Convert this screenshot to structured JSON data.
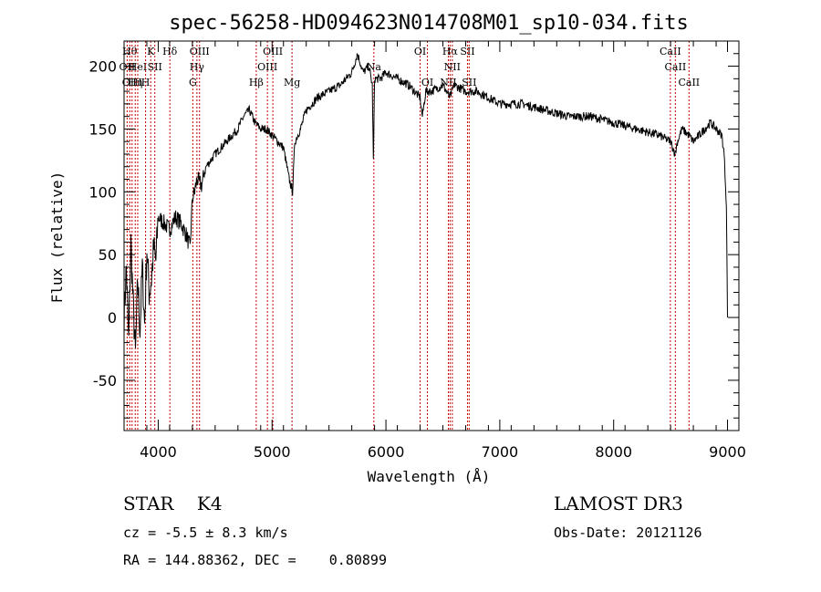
{
  "chart_data": {
    "type": "line",
    "title": "spec-56258-HD094623N014708M01_sp10-034.fits",
    "xlabel": "Wavelength (Å)",
    "ylabel": "Flux (relative)",
    "xlim": [
      3700,
      9100
    ],
    "ylim": [
      -90,
      220
    ],
    "xticks": [
      4000,
      5000,
      6000,
      7000,
      8000,
      9000
    ],
    "yticks": [
      -50,
      0,
      50,
      100,
      150,
      200
    ],
    "grid": false,
    "series": [
      {
        "x": [
          3700,
          3720,
          3740,
          3760,
          3780,
          3800,
          3820,
          3840,
          3860,
          3880,
          3900,
          3920,
          3940,
          3960,
          3980,
          4000,
          4050,
          4100,
          4150,
          4200,
          4250,
          4280,
          4300,
          4320,
          4340,
          4380,
          4420,
          4500,
          4600,
          4700,
          4750,
          4800,
          4850,
          4900,
          4950,
          5000,
          5050,
          5100,
          5150,
          5180,
          5200,
          5250,
          5300,
          5400,
          5500,
          5600,
          5700,
          5750,
          5800,
          5850,
          5880,
          5890,
          5900,
          5950,
          6000,
          6100,
          6200,
          6300,
          6320,
          6350,
          6400,
          6500,
          6560,
          6600,
          6700,
          6800,
          6900,
          7000,
          7200,
          7400,
          7600,
          7800,
          8000,
          8200,
          8400,
          8500,
          8540,
          8560,
          8600,
          8662,
          8700,
          8800,
          8850,
          8900,
          8950,
          8970,
          8990,
          9000
        ],
        "y": [
          0,
          40,
          -20,
          60,
          10,
          -30,
          30,
          -10,
          40,
          -5,
          55,
          20,
          30,
          55,
          45,
          80,
          75,
          70,
          80,
          75,
          65,
          55,
          95,
          100,
          110,
          105,
          120,
          130,
          140,
          150,
          160,
          165,
          155,
          150,
          150,
          145,
          140,
          135,
          110,
          100,
          140,
          150,
          165,
          175,
          180,
          185,
          195,
          210,
          195,
          200,
          185,
          125,
          190,
          190,
          195,
          190,
          185,
          175,
          160,
          180,
          180,
          185,
          175,
          185,
          180,
          180,
          175,
          170,
          170,
          165,
          160,
          160,
          155,
          150,
          145,
          140,
          130,
          140,
          150,
          145,
          140,
          150,
          155,
          150,
          145,
          130,
          90,
          0
        ],
        "color": "#000000"
      }
    ],
    "line_marks": [
      {
        "wavelength": 3727,
        "label": "OII",
        "row": 1
      },
      {
        "wavelength": 3750,
        "label": "Hθ",
        "row": 0
      },
      {
        "wavelength": 3770,
        "label": "OIII",
        "row": 2
      },
      {
        "wavelength": 3798,
        "label": "Hη",
        "row": 2
      },
      {
        "wavelength": 3820,
        "label": "HeI",
        "row": 1
      },
      {
        "wavelength": 3889,
        "label": "H",
        "row": 2
      },
      {
        "wavelength": 3934,
        "label": "K",
        "row": 0
      },
      {
        "wavelength": 3970,
        "label": "SII",
        "row": 1
      },
      {
        "wavelength": 4102,
        "label": "Hδ",
        "row": 0
      },
      {
        "wavelength": 4304,
        "label": "G",
        "row": 2
      },
      {
        "wavelength": 4340,
        "label": "Hγ",
        "row": 1
      },
      {
        "wavelength": 4363,
        "label": "OIII",
        "row": 0
      },
      {
        "wavelength": 4861,
        "label": "Hβ",
        "row": 2
      },
      {
        "wavelength": 4959,
        "label": "OIII",
        "row": 1
      },
      {
        "wavelength": 5007,
        "label": "OIII",
        "row": 0
      },
      {
        "wavelength": 5175,
        "label": "Mg",
        "row": 2
      },
      {
        "wavelength": 5894,
        "label": "Na",
        "row": 1
      },
      {
        "wavelength": 6300,
        "label": "OI",
        "row": 0
      },
      {
        "wavelength": 6364,
        "label": "OI",
        "row": 2
      },
      {
        "wavelength": 6548,
        "label": "NII",
        "row": 2
      },
      {
        "wavelength": 6563,
        "label": "Hα",
        "row": 0
      },
      {
        "wavelength": 6583,
        "label": "NII",
        "row": 1
      },
      {
        "wavelength": 6716,
        "label": "SII",
        "row": 0
      },
      {
        "wavelength": 6731,
        "label": "SII",
        "row": 2
      },
      {
        "wavelength": 8498,
        "label": "CaII",
        "row": 0
      },
      {
        "wavelength": 8542,
        "label": "CaII",
        "row": 1
      },
      {
        "wavelength": 8662,
        "label": "CaII",
        "row": 2
      }
    ]
  },
  "info": {
    "class_text": "STAR    K4",
    "survey": "LAMOST DR3",
    "cz_text": "cz = -5.5 ± 8.3 km/s",
    "obs_date": "Obs-Date: 20121126",
    "coords_text": "RA = 144.88362, DEC =    0.80899"
  }
}
